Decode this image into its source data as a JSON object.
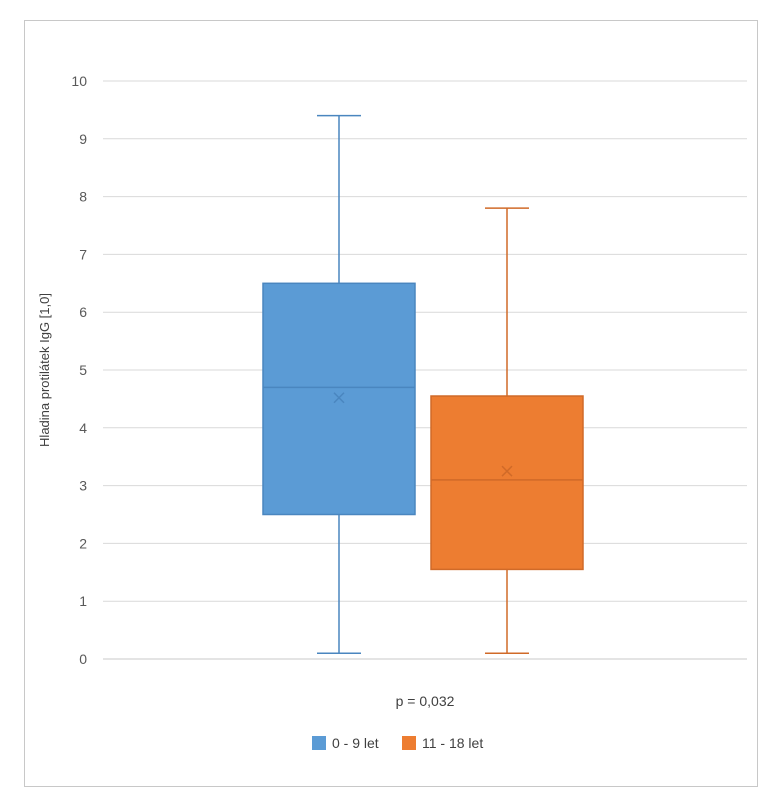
{
  "chart_data": {
    "type": "box",
    "title": "",
    "xlabel": "p = 0,032",
    "ylabel": "Hladina protilátek IgG  [1,0]",
    "ylim": [
      0,
      10
    ],
    "yticks": [
      0,
      1,
      2,
      3,
      4,
      5,
      6,
      7,
      8,
      9,
      10
    ],
    "grid": true,
    "legend_position": "bottom",
    "series": [
      {
        "name": "0 - 9 let",
        "color": "#5B9BD5",
        "edge": "#4A86BF",
        "min": 0.1,
        "q1": 2.5,
        "median": 4.7,
        "q3": 6.5,
        "max": 9.4,
        "mean": 4.52
      },
      {
        "name": "11 - 18 let",
        "color": "#ED7D31",
        "edge": "#D06A28",
        "min": 0.1,
        "q1": 1.55,
        "median": 3.1,
        "q3": 4.55,
        "max": 7.8,
        "mean": 3.25
      }
    ]
  }
}
